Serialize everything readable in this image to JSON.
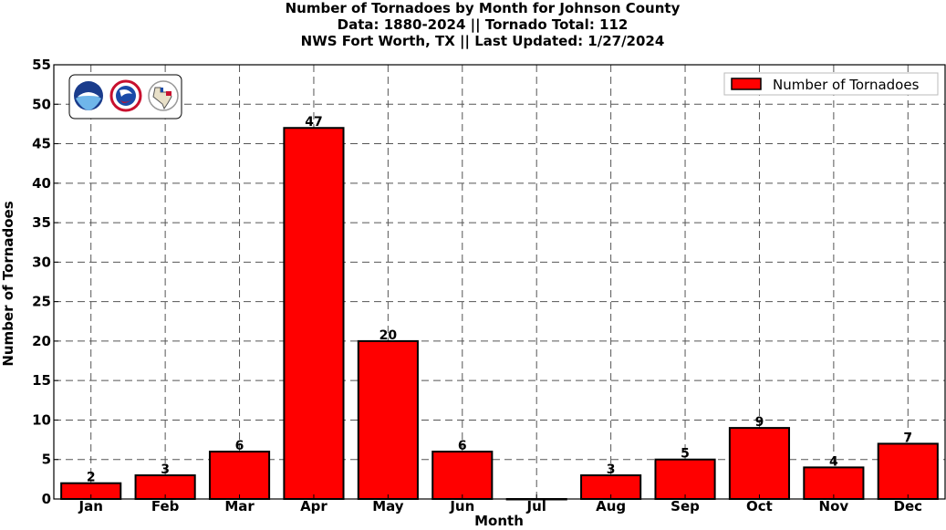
{
  "header": {
    "line1": "Number of Tornadoes by Month for Johnson County",
    "line2": "Data: 1880-2024 || Tornado Total: 112",
    "line3": "NWS Fort Worth, TX || Last Updated: 1/27/2024"
  },
  "chart_data": {
    "type": "bar",
    "categories": [
      "Jan",
      "Feb",
      "Mar",
      "Apr",
      "May",
      "Jun",
      "Jul",
      "Aug",
      "Sep",
      "Oct",
      "Nov",
      "Dec"
    ],
    "series": [
      {
        "name": "Number of Tornadoes",
        "values": [
          2,
          3,
          6,
          47,
          20,
          6,
          0,
          3,
          5,
          9,
          4,
          7
        ],
        "color": "#ff0000"
      }
    ],
    "data_labels": [
      "2",
      "3",
      "6",
      "47",
      "20",
      "6",
      "",
      "3",
      "5",
      "9",
      "4",
      "7"
    ],
    "xlabel": "Month",
    "ylabel": "Number of Tornadoes",
    "ylim": [
      0,
      55
    ],
    "yticks": [
      0,
      5,
      10,
      15,
      20,
      25,
      30,
      35,
      40,
      45,
      50,
      55
    ],
    "grid": true,
    "legend_position": "top-right",
    "logos": [
      "noaa-logo",
      "nws-logo",
      "texas-logo"
    ]
  }
}
